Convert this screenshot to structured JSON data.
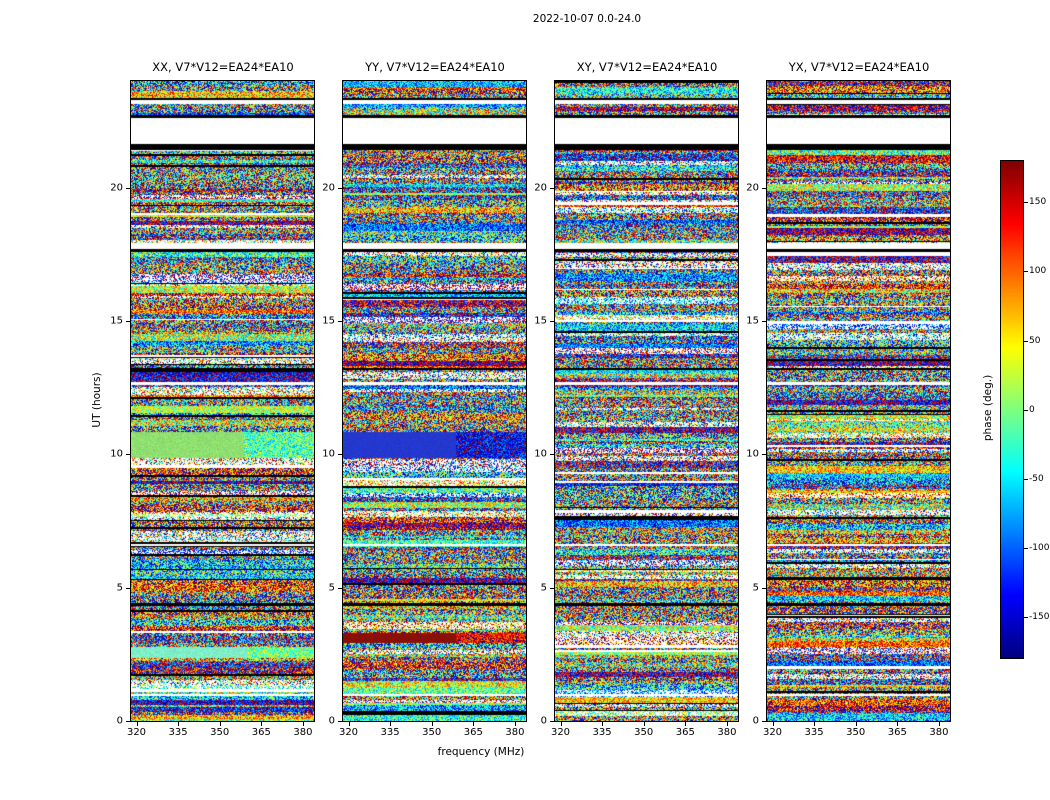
{
  "chart_data": {
    "type": "heatmap",
    "title": "2022-10-07 0.0-24.0",
    "xlabel": "frequency (MHz)",
    "ylabel": "UT (hours)",
    "colorbar_label": "phase (deg.)",
    "colormap": "jet",
    "value_range": [
      -180,
      180
    ],
    "colorbar_ticks": [
      150,
      100,
      50,
      0,
      -50,
      -100,
      -150
    ],
    "x_range": [
      318,
      384
    ],
    "x_ticks": [
      320,
      335,
      350,
      365,
      380
    ],
    "y_range": [
      0,
      24
    ],
    "y_ticks": [
      0,
      5,
      10,
      15,
      20
    ],
    "baseline": "V7*V12=EA24*EA10",
    "panels": [
      {
        "id": "XX",
        "title": "XX, V7*V12=EA24*EA10"
      },
      {
        "id": "YY",
        "title": "YY, V7*V12=EA24*EA10"
      },
      {
        "id": "XY",
        "title": "XY, V7*V12=EA24*EA10"
      },
      {
        "id": "YX",
        "title": "YX, V7*V12=EA24*EA10"
      }
    ],
    "time_gaps_hours": [
      [
        21.62,
        22.62
      ],
      [
        23.13,
        23.28
      ],
      [
        17.7,
        17.92
      ],
      [
        12.6,
        12.72
      ],
      [
        6.55,
        6.65
      ],
      [
        0.95,
        1.02
      ]
    ],
    "black_bands_hours": [
      [
        21.4,
        21.62
      ],
      [
        22.62,
        22.72
      ],
      [
        23.28,
        23.35
      ],
      [
        17.6,
        17.7
      ],
      [
        13.15,
        13.25
      ],
      [
        4.32,
        4.42
      ]
    ],
    "features": [
      {
        "panel": 0,
        "hours": [
          9.85,
          10.85
        ],
        "color": "#8fe070",
        "split": 0.62,
        "right_bias": 0.45
      },
      {
        "panel": 0,
        "hours": [
          2.35,
          2.78
        ],
        "color": "#7fefc8",
        "split": 0.64,
        "right_bias": 0.5
      },
      {
        "panel": 1,
        "hours": [
          9.85,
          10.85
        ],
        "color": "#2438cf",
        "split": 0.62,
        "right_bias": 0.12
      },
      {
        "panel": 1,
        "hours": [
          2.92,
          3.3
        ],
        "color": "#8a1008",
        "split": 0.62,
        "right_bias": 0.88
      }
    ]
  }
}
